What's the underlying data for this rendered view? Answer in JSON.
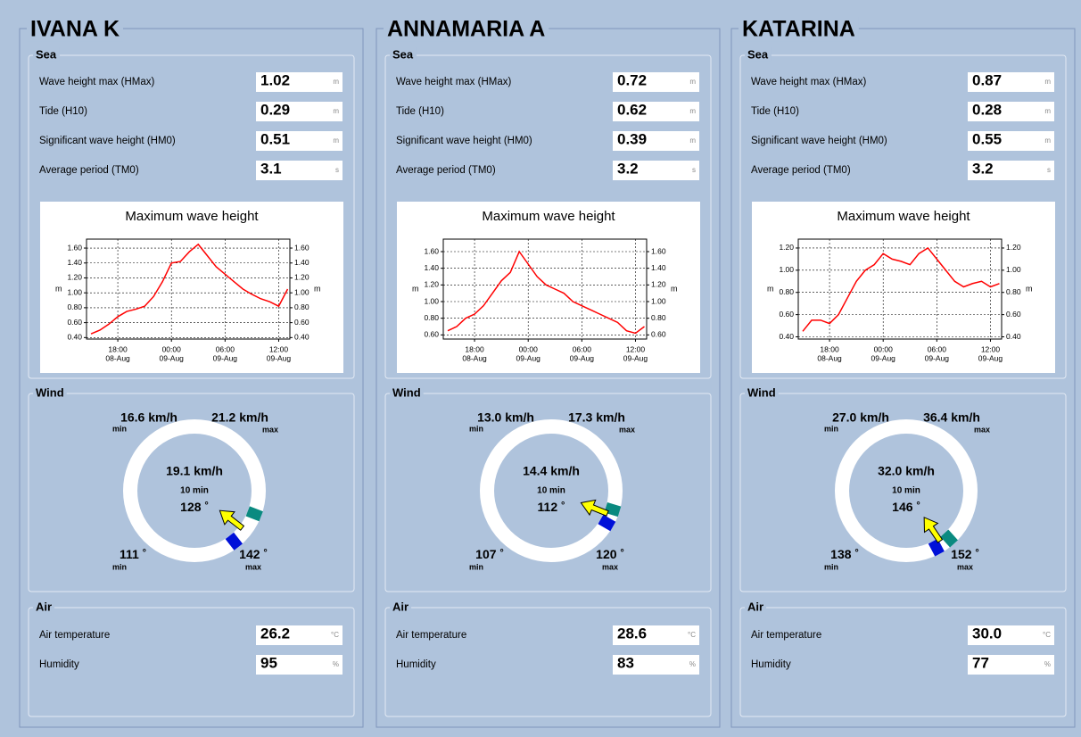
{
  "stations": [
    {
      "name": "IVANA K",
      "sea": {
        "title": "Sea",
        "fields": [
          {
            "label": "Wave height max (HMax)",
            "value": "1.02",
            "unit": "m"
          },
          {
            "label": "Tide (H10)",
            "value": "0.29",
            "unit": "m"
          },
          {
            "label": "Significant wave height (HM0)",
            "value": "0.51",
            "unit": "m"
          },
          {
            "label": "Average period (TM0)",
            "value": "3.1",
            "unit": "s"
          }
        ]
      },
      "chart": {
        "type": "line",
        "title": "Maximum wave height",
        "y_label": "m",
        "color": "#ff0000",
        "x": [
          "08-Aug 15:00",
          "08-Aug 16:00",
          "08-Aug 17:00",
          "08-Aug 18:00",
          "08-Aug 19:00",
          "08-Aug 20:00",
          "08-Aug 21:00",
          "08-Aug 22:00",
          "08-Aug 23:00",
          "09-Aug 00:00",
          "09-Aug 01:00",
          "09-Aug 02:00",
          "09-Aug 03:00",
          "09-Aug 04:00",
          "09-Aug 05:00",
          "09-Aug 06:00",
          "09-Aug 07:00",
          "09-Aug 08:00",
          "09-Aug 09:00",
          "09-Aug 10:00",
          "09-Aug 11:00",
          "09-Aug 12:00",
          "09-Aug 13:00"
        ],
        "values": [
          0.45,
          0.5,
          0.58,
          0.68,
          0.75,
          0.78,
          0.82,
          0.95,
          1.15,
          1.4,
          1.42,
          1.55,
          1.65,
          1.5,
          1.35,
          1.25,
          1.15,
          1.05,
          0.98,
          0.92,
          0.88,
          0.82,
          1.05
        ],
        "xlim": [
          "08-Aug 14:30",
          "09-Aug 13:15"
        ],
        "xticks": [
          {
            "value": "08-Aug 18:00",
            "label": "18:00",
            "date": "08-Aug"
          },
          {
            "value": "09-Aug 00:00",
            "label": "00:00",
            "date": "09-Aug"
          },
          {
            "value": "09-Aug 06:00",
            "label": "06:00",
            "date": "09-Aug"
          },
          {
            "value": "09-Aug 12:00",
            "label": "12:00",
            "date": "09-Aug"
          }
        ],
        "ylim": [
          0.38,
          1.72
        ],
        "yticks": [
          {
            "value": 0.4,
            "label": "0.40"
          },
          {
            "value": 0.6,
            "label": "0.60"
          },
          {
            "value": 0.8,
            "label": "0.80"
          },
          {
            "value": 1,
            "label": "1.00"
          },
          {
            "value": 1.2,
            "label": "1.20"
          },
          {
            "value": 1.4,
            "label": "1.40"
          },
          {
            "value": 1.6,
            "label": "1.60"
          }
        ],
        "grid": true
      },
      "wind": {
        "title": "Wind",
        "min_speed": "16.6 km/h",
        "min_label": "min",
        "max_speed": "21.2 km/h",
        "max_label": "max",
        "avg_speed": "19.1 km/h",
        "avg_period": "10 min",
        "direction": 128,
        "direction_unit": "°",
        "dir_min": 111,
        "dir_min_label": "min",
        "dir_max": 142,
        "dir_max_label": "max"
      },
      "air": {
        "title": "Air",
        "fields": [
          {
            "label": "Air temperature",
            "value": "26.2",
            "unit": "°C"
          },
          {
            "label": "Humidity",
            "value": "95",
            "unit": "%"
          }
        ]
      }
    },
    {
      "name": "ANNAMARIA A",
      "sea": {
        "title": "Sea",
        "fields": [
          {
            "label": "Wave height max (HMax)",
            "value": "0.72",
            "unit": "m"
          },
          {
            "label": "Tide (H10)",
            "value": "0.62",
            "unit": "m"
          },
          {
            "label": "Significant wave height (HM0)",
            "value": "0.39",
            "unit": "m"
          },
          {
            "label": "Average period (TM0)",
            "value": "3.2",
            "unit": "s"
          }
        ]
      },
      "chart": {
        "type": "line",
        "title": "Maximum wave height",
        "y_label": "m",
        "color": "#ff0000",
        "x": [
          "08-Aug 15:00",
          "08-Aug 16:00",
          "08-Aug 17:00",
          "08-Aug 18:00",
          "08-Aug 19:00",
          "08-Aug 20:00",
          "08-Aug 21:00",
          "08-Aug 22:00",
          "08-Aug 23:00",
          "09-Aug 00:00",
          "09-Aug 01:00",
          "09-Aug 02:00",
          "09-Aug 03:00",
          "09-Aug 04:00",
          "09-Aug 05:00",
          "09-Aug 06:00",
          "09-Aug 07:00",
          "09-Aug 08:00",
          "09-Aug 09:00",
          "09-Aug 10:00",
          "09-Aug 11:00",
          "09-Aug 12:00",
          "09-Aug 13:00"
        ],
        "values": [
          0.65,
          0.7,
          0.8,
          0.85,
          0.95,
          1.1,
          1.25,
          1.35,
          1.6,
          1.45,
          1.3,
          1.2,
          1.15,
          1.1,
          1.0,
          0.95,
          0.9,
          0.85,
          0.8,
          0.75,
          0.65,
          0.62,
          0.7
        ],
        "xlim": [
          "08-Aug 14:30",
          "09-Aug 13:15"
        ],
        "xticks": [
          {
            "value": "08-Aug 18:00",
            "label": "18:00",
            "date": "08-Aug"
          },
          {
            "value": "09-Aug 00:00",
            "label": "00:00",
            "date": "09-Aug"
          },
          {
            "value": "09-Aug 06:00",
            "label": "06:00",
            "date": "09-Aug"
          },
          {
            "value": "09-Aug 12:00",
            "label": "12:00",
            "date": "09-Aug"
          }
        ],
        "ylim": [
          0.55,
          1.75
        ],
        "yticks": [
          {
            "value": 0.6,
            "label": "0.60"
          },
          {
            "value": 0.8,
            "label": "0.80"
          },
          {
            "value": 1,
            "label": "1.00"
          },
          {
            "value": 1.2,
            "label": "1.20"
          },
          {
            "value": 1.4,
            "label": "1.40"
          },
          {
            "value": 1.6,
            "label": "1.60"
          }
        ],
        "grid": true
      },
      "wind": {
        "title": "Wind",
        "min_speed": "13.0 km/h",
        "min_label": "min",
        "max_speed": "17.3 km/h",
        "max_label": "max",
        "avg_speed": "14.4 km/h",
        "avg_period": "10 min",
        "direction": 112,
        "direction_unit": "°",
        "dir_min": 107,
        "dir_min_label": "min",
        "dir_max": 120,
        "dir_max_label": "max"
      },
      "air": {
        "title": "Air",
        "fields": [
          {
            "label": "Air temperature",
            "value": "28.6",
            "unit": "°C"
          },
          {
            "label": "Humidity",
            "value": "83",
            "unit": "%"
          }
        ]
      }
    },
    {
      "name": "KATARINA",
      "sea": {
        "title": "Sea",
        "fields": [
          {
            "label": "Wave height max (HMax)",
            "value": "0.87",
            "unit": "m"
          },
          {
            "label": "Tide (H10)",
            "value": "0.28",
            "unit": "m"
          },
          {
            "label": "Significant wave height (HM0)",
            "value": "0.55",
            "unit": "m"
          },
          {
            "label": "Average period (TM0)",
            "value": "3.2",
            "unit": "s"
          }
        ]
      },
      "chart": {
        "type": "line",
        "title": "Maximum wave height",
        "y_label": "m",
        "color": "#ff0000",
        "x": [
          "08-Aug 15:00",
          "08-Aug 16:00",
          "08-Aug 17:00",
          "08-Aug 18:00",
          "08-Aug 19:00",
          "08-Aug 20:00",
          "08-Aug 21:00",
          "08-Aug 22:00",
          "08-Aug 23:00",
          "09-Aug 00:00",
          "09-Aug 01:00",
          "09-Aug 02:00",
          "09-Aug 03:00",
          "09-Aug 04:00",
          "09-Aug 05:00",
          "09-Aug 06:00",
          "09-Aug 07:00",
          "09-Aug 08:00",
          "09-Aug 09:00",
          "09-Aug 10:00",
          "09-Aug 11:00",
          "09-Aug 12:00",
          "09-Aug 13:00"
        ],
        "values": [
          0.45,
          0.55,
          0.55,
          0.52,
          0.6,
          0.75,
          0.9,
          1.0,
          1.05,
          1.15,
          1.1,
          1.08,
          1.05,
          1.15,
          1.2,
          1.1,
          1.0,
          0.9,
          0.85,
          0.88,
          0.9,
          0.85,
          0.88
        ],
        "xlim": [
          "08-Aug 14:30",
          "09-Aug 13:15"
        ],
        "xticks": [
          {
            "value": "08-Aug 18:00",
            "label": "18:00",
            "date": "08-Aug"
          },
          {
            "value": "09-Aug 00:00",
            "label": "00:00",
            "date": "09-Aug"
          },
          {
            "value": "09-Aug 06:00",
            "label": "06:00",
            "date": "09-Aug"
          },
          {
            "value": "09-Aug 12:00",
            "label": "12:00",
            "date": "09-Aug"
          }
        ],
        "ylim": [
          0.38,
          1.28
        ],
        "yticks": [
          {
            "value": 0.4,
            "label": "0.40"
          },
          {
            "value": 0.6,
            "label": "0.60"
          },
          {
            "value": 0.8,
            "label": "0.80"
          },
          {
            "value": 1,
            "label": "1.00"
          },
          {
            "value": 1.2,
            "label": "1.20"
          }
        ],
        "grid": true
      },
      "wind": {
        "title": "Wind",
        "min_speed": "27.0 km/h",
        "min_label": "min",
        "max_speed": "36.4 km/h",
        "max_label": "max",
        "avg_speed": "32.0 km/h",
        "avg_period": "10 min",
        "direction": 146,
        "direction_unit": "°",
        "dir_min": 138,
        "dir_min_label": "min",
        "dir_max": 152,
        "dir_max_label": "max"
      },
      "air": {
        "title": "Air",
        "fields": [
          {
            "label": "Air temperature",
            "value": "30.0",
            "unit": "°C"
          },
          {
            "label": "Humidity",
            "value": "77",
            "unit": "%"
          }
        ]
      }
    }
  ]
}
